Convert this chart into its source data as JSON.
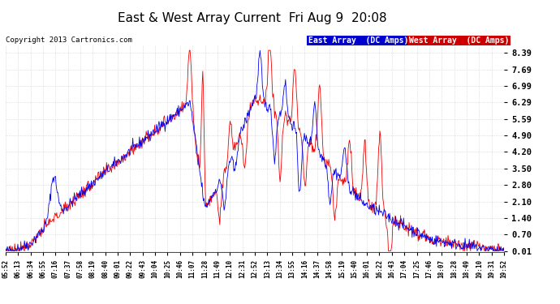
{
  "title": "East & West Array Current  Fri Aug 9  20:08",
  "copyright": "Copyright 2013 Cartronics.com",
  "legend_east": "East Array  (DC Amps)",
  "legend_west": "West Array  (DC Amps)",
  "east_color": "#0000ee",
  "west_color": "#ee0000",
  "legend_east_bg": "#0000cc",
  "legend_west_bg": "#cc0000",
  "background_color": "#ffffff",
  "grid_color": "#c8c8c8",
  "yticks": [
    0.01,
    0.7,
    1.4,
    2.1,
    2.8,
    3.5,
    4.2,
    4.9,
    5.59,
    6.29,
    6.99,
    7.69,
    8.39
  ],
  "ylim": [
    -0.05,
    8.7
  ],
  "xtick_labels": [
    "05:52",
    "06:13",
    "06:34",
    "06:55",
    "07:16",
    "07:37",
    "07:58",
    "08:19",
    "08:40",
    "09:01",
    "09:22",
    "09:43",
    "10:04",
    "10:25",
    "10:46",
    "11:07",
    "11:28",
    "11:49",
    "12:10",
    "12:31",
    "12:52",
    "13:13",
    "13:34",
    "13:55",
    "14:16",
    "14:37",
    "14:58",
    "15:19",
    "15:40",
    "16:01",
    "16:22",
    "16:43",
    "17:04",
    "17:25",
    "17:46",
    "18:07",
    "18:28",
    "18:49",
    "19:10",
    "19:31",
    "19:52"
  ]
}
